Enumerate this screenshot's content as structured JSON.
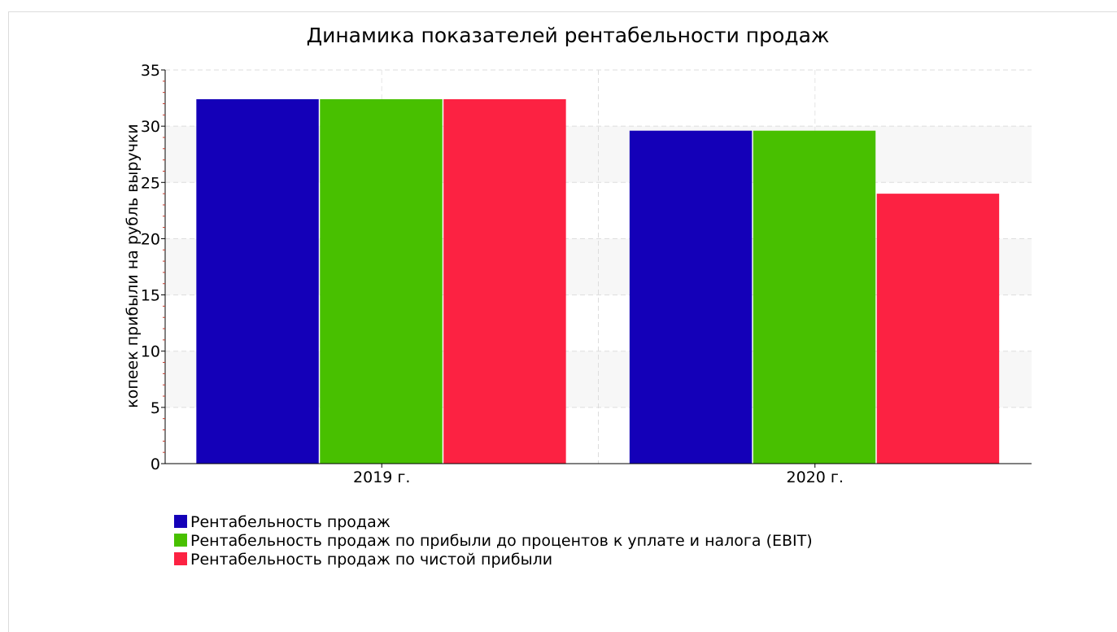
{
  "chart_data": {
    "type": "bar",
    "title": "Динамика показателей рентабельности продаж",
    "xlabel": "",
    "ylabel": "копеек прибыли на рубль выручки",
    "categories": [
      "2019 г.",
      "2020 г."
    ],
    "ylim": [
      0,
      35
    ],
    "yticks": [
      "0",
      "5",
      "10",
      "15",
      "20",
      "25",
      "30",
      "35"
    ],
    "grid": true,
    "legend_position": "bottom-left",
    "series": [
      {
        "name": "Рентабельность продаж",
        "color": "#1400b8",
        "values": [
          32.4,
          29.6
        ]
      },
      {
        "name": "Рентабельность продаж по прибыли до процентов к уплате и налога (EBIT)",
        "color": "#48c000",
        "values": [
          32.4,
          29.6
        ]
      },
      {
        "name": "Рентабельность продаж по чистой прибыли",
        "color": "#fc2242",
        "values": [
          32.4,
          24.0
        ]
      }
    ]
  }
}
